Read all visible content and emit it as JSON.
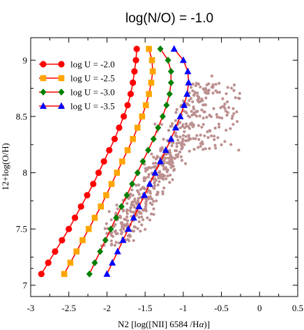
{
  "chart_data": {
    "type": "line",
    "title": "log(N/O) = -1.0",
    "xlabel_main": "N2 [log([NII] 6584 /H",
    "xlabel_alpha": "α",
    "xlabel_end": ")]",
    "ylabel": "12+log(O/H)",
    "xlim": [
      -3.0,
      0.5
    ],
    "ylim": [
      6.9,
      9.2
    ],
    "x_ticks": [
      -3,
      -2.5,
      -2,
      -1.5,
      -1,
      -0.5,
      0,
      0.5
    ],
    "x_tick_labels": [
      "-3",
      "-2.5",
      "-2",
      "-1.5",
      "-1",
      "-0.5",
      "0",
      "0.5"
    ],
    "y_ticks": [
      7,
      7.5,
      8,
      8.5,
      9
    ],
    "y_tick_labels": [
      "7",
      "7.5",
      "8",
      "8.5",
      "9"
    ],
    "grid": false,
    "legend_position": "top-left",
    "y_values": [
      7.1,
      7.2,
      7.3,
      7.4,
      7.5,
      7.6,
      7.7,
      7.8,
      7.9,
      8.0,
      8.1,
      8.2,
      8.3,
      8.4,
      8.5,
      8.6,
      8.7,
      8.8,
      8.9,
      9.0,
      9.1
    ],
    "series": [
      {
        "name": "log U = -2.0",
        "color": "#ff0000",
        "marker": "circle",
        "x": [
          -2.86,
          -2.77,
          -2.68,
          -2.59,
          -2.5,
          -2.42,
          -2.34,
          -2.26,
          -2.18,
          -2.11,
          -2.04,
          -1.97,
          -1.9,
          -1.84,
          -1.78,
          -1.73,
          -1.69,
          -1.66,
          -1.64,
          -1.62,
          -1.61
        ]
      },
      {
        "name": "log U = -2.5",
        "color": "#ffa500",
        "marker": "square",
        "x": [
          -2.56,
          -2.48,
          -2.4,
          -2.32,
          -2.24,
          -2.16,
          -2.08,
          -2.01,
          -1.94,
          -1.87,
          -1.8,
          -1.73,
          -1.66,
          -1.6,
          -1.54,
          -1.49,
          -1.45,
          -1.42,
          -1.4,
          -1.41,
          -1.45
        ]
      },
      {
        "name": "log U = -3.0",
        "color": "#008000",
        "marker": "diamond",
        "x": [
          -2.23,
          -2.16,
          -2.09,
          -2.02,
          -1.95,
          -1.88,
          -1.81,
          -1.74,
          -1.67,
          -1.6,
          -1.53,
          -1.46,
          -1.39,
          -1.33,
          -1.27,
          -1.22,
          -1.18,
          -1.16,
          -1.16,
          -1.2,
          -1.3
        ]
      },
      {
        "name": "log U = -3.5",
        "color": "#0000ff",
        "marker": "triangle",
        "x": [
          -2.0,
          -1.93,
          -1.86,
          -1.79,
          -1.72,
          -1.65,
          -1.58,
          -1.51,
          -1.44,
          -1.37,
          -1.3,
          -1.23,
          -1.16,
          -1.1,
          -1.04,
          -0.99,
          -0.95,
          -0.93,
          -0.94,
          -1.0,
          -1.12
        ]
      }
    ],
    "scatter_color": "#bc8f8f"
  }
}
